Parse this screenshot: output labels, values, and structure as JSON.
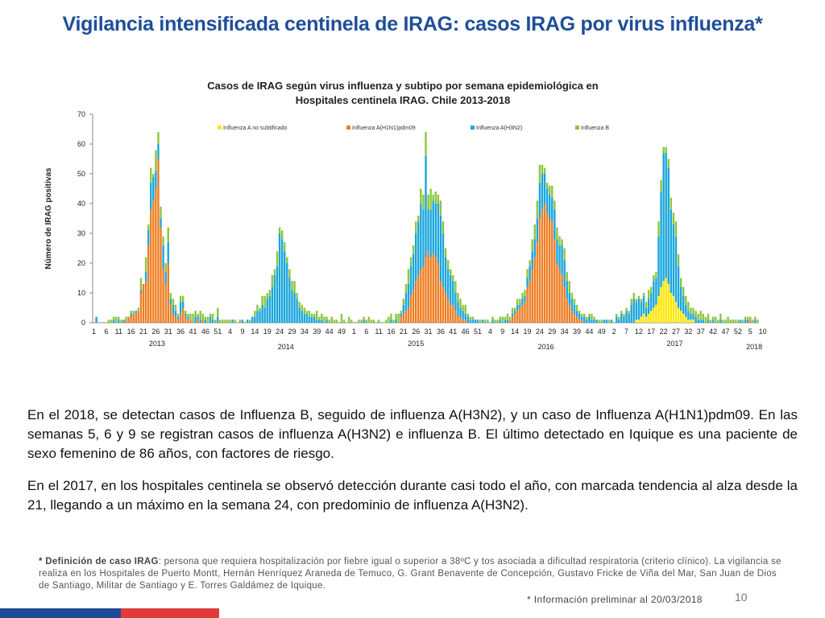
{
  "slide": {
    "title": "Vigilancia intensificada centinela de IRAG:   casos IRAG  por virus influenza*",
    "paragraphs": [
      "En el 2018, se detectan casos de Influenza B, seguido  de influenza A(H3N2), y  un caso de Influenza A(H1N1)pdm09. En las semanas 5, 6 y 9 se registran casos de influenza A(H3N2) e influenza B. El último detectado en Iquique es una paciente  de sexo femenino de 86 años, con factores de riesgo.",
      "En el 2017, en los hospitales centinela se observó detección durante casi todo el año, con marcada tendencia al alza desde la 21, llegando a un máximo en la semana 24, con predominio de influenza A(H3N2)."
    ],
    "footnote_label": "* Definición de caso IRAG",
    "footnote_text": ": persona que requiera hospitalización por fiebre igual o superior a 38ºC y tos asociada a dificultad respiratoria (criterio clínico). La vigilancia se realiza en los Hospitales de Puerto Montt, Hernán Henríquez Araneda de  Temuco, G. Grant Benavente de Concepción, Gustavo Fricke de Viña del Mar, San Juan de Dios de Santiago, Militar de Santiago y E. Torres Galdámez de Iquique.",
    "info_note": "* Información  preliminar  al 20/03/2018",
    "page_number": "10"
  },
  "chart_data": {
    "type": "bar",
    "stacked": true,
    "title_line1": "Casos de IRAG según virus influenza  y subtipo por semana epidemiológica en",
    "title_line2": "Hospitales centinela IRAG. Chile 2013-2018",
    "ylabel": "Número de IRAG positivas",
    "ylim": [
      0,
      70
    ],
    "yticks": [
      0,
      10,
      20,
      30,
      40,
      50,
      60,
      70
    ],
    "xtick_labels": [
      "1",
      "6",
      "11",
      "16",
      "21",
      "26",
      "31",
      "36",
      "41",
      "46",
      "51",
      "4",
      "9",
      "14",
      "19",
      "24",
      "29",
      "34",
      "39",
      "44",
      "49",
      "1",
      "6",
      "11",
      "16",
      "21",
      "26",
      "31",
      "36",
      "41",
      "46",
      "51",
      "4",
      "9",
      "14",
      "19",
      "24",
      "29",
      "34",
      "39",
      "44",
      "49",
      "2",
      "7",
      "12",
      "17",
      "22",
      "27",
      "32",
      "37",
      "42",
      "47",
      "52",
      "5",
      "10"
    ],
    "years": [
      {
        "label": "2013",
        "start": 0,
        "weeks": 52
      },
      {
        "label": "2014",
        "start": 52,
        "weeks": 52
      },
      {
        "label": "2015",
        "start": 104,
        "weeks": 53
      },
      {
        "label": "2016",
        "start": 157,
        "weeks": 52
      },
      {
        "label": "2017",
        "start": 209,
        "weeks": 52
      },
      {
        "label": "2018",
        "start": 261,
        "weeks": 10
      }
    ],
    "colors": {
      "a_no_sub": "#ffe600",
      "h1n1": "#ef7d22",
      "h3n2": "#1aa6dc",
      "b": "#8cc63f"
    },
    "series": [
      {
        "name": "Influenza A no subtificado",
        "key": "a_no_sub"
      },
      {
        "name": "Influenza A(H1N1)pdm09",
        "key": "h1n1"
      },
      {
        "name": "Influenza A(H3N2)",
        "key": "h3n2"
      },
      {
        "name": "Influenza  B",
        "key": "b"
      }
    ],
    "legend_position": "top",
    "grid": false,
    "values_note": "per-week stacked values [a_no_sub, h1n1, h3n2, b] for 271 weeks",
    "weeks": [
      [
        0,
        0,
        0,
        0
      ],
      [
        0,
        0,
        2,
        0
      ],
      [
        0,
        0,
        0,
        0
      ],
      [
        0,
        0,
        0,
        0
      ],
      [
        0,
        0,
        0,
        0
      ],
      [
        0,
        0,
        0,
        0
      ],
      [
        0,
        0,
        0,
        1
      ],
      [
        0,
        0,
        0,
        1
      ],
      [
        0,
        0,
        1,
        1
      ],
      [
        0,
        0,
        0,
        2
      ],
      [
        0,
        0,
        1,
        1
      ],
      [
        0,
        0,
        0,
        1
      ],
      [
        0,
        0,
        1,
        0
      ],
      [
        0,
        1,
        0,
        1
      ],
      [
        0,
        2,
        0,
        0
      ],
      [
        0,
        2,
        1,
        1
      ],
      [
        0,
        3,
        0,
        1
      ],
      [
        0,
        3,
        1,
        0
      ],
      [
        0,
        4,
        0,
        1
      ],
      [
        0,
        10,
        1,
        4
      ],
      [
        0,
        13,
        0,
        0
      ],
      [
        0,
        14,
        3,
        5
      ],
      [
        0,
        26,
        5,
        2
      ],
      [
        0,
        38,
        9,
        5
      ],
      [
        0,
        41,
        8,
        1
      ],
      [
        0,
        45,
        6,
        7
      ],
      [
        0,
        55,
        5,
        4
      ],
      [
        0,
        32,
        3,
        4
      ],
      [
        0,
        18,
        8,
        3
      ],
      [
        0,
        13,
        4,
        3
      ],
      [
        0,
        20,
        7,
        5
      ],
      [
        0,
        6,
        2,
        2
      ],
      [
        0,
        3,
        3,
        2
      ],
      [
        0,
        2,
        2,
        2
      ],
      [
        0,
        1,
        1,
        1
      ],
      [
        0,
        3,
        4,
        2
      ],
      [
        0,
        5,
        2,
        2
      ],
      [
        0,
        2,
        1,
        1
      ],
      [
        0,
        1,
        1,
        1
      ],
      [
        0,
        1,
        0,
        2
      ],
      [
        0,
        0,
        0,
        3
      ],
      [
        0,
        0,
        2,
        2
      ],
      [
        0,
        1,
        1,
        1
      ],
      [
        0,
        0,
        1,
        3
      ],
      [
        0,
        1,
        0,
        2
      ],
      [
        0,
        0,
        1,
        1
      ],
      [
        0,
        0,
        0,
        2
      ],
      [
        0,
        0,
        2,
        1
      ],
      [
        0,
        0,
        1,
        2
      ],
      [
        0,
        0,
        0,
        1
      ],
      [
        0,
        0,
        2,
        3
      ],
      [
        0,
        0,
        0,
        1
      ],
      [
        0,
        0,
        0,
        1
      ],
      [
        0,
        0,
        0,
        1
      ],
      [
        0,
        0,
        0,
        1
      ],
      [
        0,
        0,
        0,
        1
      ],
      [
        0,
        0,
        1,
        0
      ],
      [
        0,
        0,
        0,
        1
      ],
      [
        0,
        0,
        0,
        0
      ],
      [
        0,
        0,
        0,
        1
      ],
      [
        0,
        0,
        1,
        0
      ],
      [
        0,
        0,
        0,
        0
      ],
      [
        0,
        0,
        1,
        0
      ],
      [
        0,
        0,
        0,
        1
      ],
      [
        0,
        0,
        2,
        0
      ],
      [
        0,
        0,
        2,
        2
      ],
      [
        0,
        0,
        4,
        2
      ],
      [
        0,
        0,
        4,
        1
      ],
      [
        0,
        0,
        6,
        3
      ],
      [
        0,
        0,
        5,
        4
      ],
      [
        0,
        0,
        8,
        2
      ],
      [
        0,
        0,
        9,
        2
      ],
      [
        0,
        0,
        12,
        4
      ],
      [
        0,
        0,
        16,
        2
      ],
      [
        0,
        0,
        19,
        5
      ],
      [
        0,
        0,
        30,
        2
      ],
      [
        0,
        0,
        28,
        3
      ],
      [
        0,
        0,
        24,
        3
      ],
      [
        0,
        0,
        20,
        2
      ],
      [
        0,
        0,
        15,
        3
      ],
      [
        0,
        0,
        11,
        3
      ],
      [
        0,
        0,
        10,
        4
      ],
      [
        0,
        0,
        8,
        2
      ],
      [
        0,
        0,
        5,
        2
      ],
      [
        0,
        0,
        4,
        2
      ],
      [
        0,
        0,
        3,
        2
      ],
      [
        0,
        0,
        3,
        1
      ],
      [
        0,
        0,
        2,
        2
      ],
      [
        0,
        0,
        2,
        1
      ],
      [
        0,
        0,
        2,
        1
      ],
      [
        0,
        0,
        1,
        3
      ],
      [
        0,
        0,
        1,
        1
      ],
      [
        0,
        0,
        1,
        2
      ],
      [
        0,
        0,
        0,
        2
      ],
      [
        0,
        0,
        1,
        1
      ],
      [
        0,
        0,
        0,
        1
      ],
      [
        0,
        0,
        0,
        2
      ],
      [
        0,
        0,
        0,
        1
      ],
      [
        0,
        0,
        0,
        1
      ],
      [
        0,
        0,
        0,
        0
      ],
      [
        0,
        0,
        0,
        3
      ],
      [
        0,
        0,
        0,
        1
      ],
      [
        0,
        0,
        0,
        0
      ],
      [
        0,
        0,
        0,
        2
      ],
      [
        0,
        0,
        0,
        1
      ],
      [
        0,
        0,
        0,
        0
      ],
      [
        0,
        0,
        0,
        0
      ],
      [
        0,
        0,
        0,
        1
      ],
      [
        0,
        0,
        0,
        1
      ],
      [
        0,
        0,
        1,
        1
      ],
      [
        0,
        0,
        0,
        1
      ],
      [
        0,
        0,
        0,
        2
      ],
      [
        0,
        0,
        0,
        1
      ],
      [
        0,
        0,
        0,
        1
      ],
      [
        0,
        0,
        0,
        0
      ],
      [
        0,
        0,
        0,
        1
      ],
      [
        0,
        0,
        0,
        0
      ],
      [
        0,
        0,
        0,
        0
      ],
      [
        0,
        0,
        0,
        1
      ],
      [
        0,
        0,
        0,
        2
      ],
      [
        0,
        0,
        1,
        2
      ],
      [
        0,
        0,
        0,
        1
      ],
      [
        0,
        0,
        1,
        2
      ],
      [
        0,
        0,
        0,
        3
      ],
      [
        0,
        2,
        1,
        1
      ],
      [
        0,
        3,
        3,
        2
      ],
      [
        0,
        4,
        6,
        3
      ],
      [
        0,
        5,
        8,
        5
      ],
      [
        0,
        9,
        10,
        3
      ],
      [
        0,
        11,
        12,
        3
      ],
      [
        0,
        14,
        16,
        4
      ],
      [
        0,
        16,
        18,
        2
      ],
      [
        0,
        18,
        22,
        5
      ],
      [
        0,
        19,
        19,
        5
      ],
      [
        0,
        22,
        34,
        8
      ],
      [
        0,
        24,
        14,
        5
      ],
      [
        0,
        22,
        16,
        7
      ],
      [
        0,
        23,
        18,
        2
      ],
      [
        0,
        22,
        18,
        4
      ],
      [
        0,
        20,
        20,
        3
      ],
      [
        0,
        14,
        22,
        5
      ],
      [
        0,
        12,
        18,
        4
      ],
      [
        0,
        10,
        12,
        3
      ],
      [
        0,
        8,
        10,
        3
      ],
      [
        0,
        6,
        10,
        2
      ],
      [
        0,
        6,
        8,
        2
      ],
      [
        0,
        4,
        6,
        4
      ],
      [
        0,
        2,
        5,
        3
      ],
      [
        0,
        2,
        3,
        3
      ],
      [
        0,
        1,
        3,
        2
      ],
      [
        0,
        1,
        2,
        3
      ],
      [
        0,
        0,
        2,
        1
      ],
      [
        0,
        0,
        1,
        1
      ],
      [
        0,
        0,
        1,
        1
      ],
      [
        0,
        0,
        1,
        0
      ],
      [
        0,
        0,
        1,
        0
      ],
      [
        0,
        0,
        0,
        1
      ],
      [
        0,
        0,
        1,
        0
      ],
      [
        0,
        0,
        0,
        1
      ],
      [
        0,
        0,
        0,
        1
      ],
      [
        0,
        0,
        0,
        0
      ],
      [
        0,
        0,
        1,
        1
      ],
      [
        0,
        0,
        0,
        1
      ],
      [
        0,
        0,
        0,
        1
      ],
      [
        0,
        0,
        1,
        1
      ],
      [
        0,
        0,
        0,
        2
      ],
      [
        0,
        0,
        1,
        1
      ],
      [
        0,
        0,
        1,
        2
      ],
      [
        0,
        1,
        0,
        1
      ],
      [
        0,
        2,
        1,
        2
      ],
      [
        0,
        3,
        1,
        1
      ],
      [
        0,
        4,
        2,
        2
      ],
      [
        0,
        5,
        1,
        2
      ],
      [
        0,
        6,
        2,
        2
      ],
      [
        0,
        7,
        2,
        2
      ],
      [
        0,
        12,
        3,
        3
      ],
      [
        0,
        14,
        5,
        2
      ],
      [
        0,
        18,
        6,
        4
      ],
      [
        0,
        22,
        6,
        5
      ],
      [
        0,
        27,
        8,
        6
      ],
      [
        0,
        35,
        12,
        6
      ],
      [
        0,
        38,
        12,
        3
      ],
      [
        0,
        40,
        10,
        2
      ],
      [
        0,
        37,
        8,
        2
      ],
      [
        0,
        35,
        8,
        3
      ],
      [
        0,
        34,
        8,
        4
      ],
      [
        0,
        28,
        10,
        3
      ],
      [
        0,
        20,
        8,
        4
      ],
      [
        0,
        18,
        8,
        3
      ],
      [
        0,
        16,
        10,
        2
      ],
      [
        0,
        12,
        9,
        4
      ],
      [
        0,
        8,
        6,
        3
      ],
      [
        0,
        6,
        4,
        4
      ],
      [
        0,
        4,
        4,
        2
      ],
      [
        0,
        3,
        3,
        2
      ],
      [
        0,
        2,
        2,
        2
      ],
      [
        0,
        1,
        2,
        1
      ],
      [
        0,
        1,
        1,
        1
      ],
      [
        0,
        0,
        2,
        1
      ],
      [
        0,
        0,
        1,
        1
      ],
      [
        0,
        0,
        2,
        1
      ],
      [
        0,
        0,
        1,
        2
      ],
      [
        0,
        0,
        1,
        1
      ],
      [
        0,
        0,
        1,
        0
      ],
      [
        0,
        0,
        0,
        1
      ],
      [
        0,
        0,
        0,
        1
      ],
      [
        0,
        0,
        1,
        0
      ],
      [
        0,
        0,
        1,
        0
      ],
      [
        0,
        0,
        0,
        1
      ],
      [
        0,
        0,
        1,
        0
      ],
      [
        0,
        0,
        0,
        0
      ],
      [
        0,
        0,
        2,
        1
      ],
      [
        0,
        0,
        1,
        1
      ],
      [
        0,
        0,
        3,
        1
      ],
      [
        0,
        0,
        2,
        1
      ],
      [
        0,
        0,
        4,
        1
      ],
      [
        0,
        0,
        3,
        1
      ],
      [
        0,
        0,
        6,
        2
      ],
      [
        0,
        0,
        8,
        2
      ],
      [
        1,
        0,
        6,
        1
      ],
      [
        1,
        0,
        7,
        1
      ],
      [
        2,
        0,
        5,
        1
      ],
      [
        3,
        0,
        6,
        1
      ],
      [
        2,
        0,
        3,
        2
      ],
      [
        3,
        0,
        5,
        3
      ],
      [
        4,
        0,
        6,
        2
      ],
      [
        5,
        0,
        9,
        2
      ],
      [
        6,
        0,
        9,
        2
      ],
      [
        9,
        0,
        20,
        5
      ],
      [
        12,
        0,
        32,
        4
      ],
      [
        14,
        0,
        43,
        2
      ],
      [
        15,
        0,
        42,
        2
      ],
      [
        13,
        0,
        39,
        3
      ],
      [
        10,
        0,
        28,
        4
      ],
      [
        9,
        0,
        24,
        4
      ],
      [
        7,
        0,
        22,
        5
      ],
      [
        5,
        0,
        14,
        4
      ],
      [
        4,
        0,
        8,
        3
      ],
      [
        3,
        0,
        6,
        3
      ],
      [
        2,
        0,
        4,
        3
      ],
      [
        1,
        0,
        3,
        3
      ],
      [
        1,
        0,
        2,
        2
      ],
      [
        1,
        0,
        2,
        2
      ],
      [
        0,
        0,
        2,
        2
      ],
      [
        0,
        0,
        1,
        2
      ],
      [
        0,
        0,
        1,
        3
      ],
      [
        0,
        0,
        1,
        2
      ],
      [
        0,
        0,
        0,
        2
      ],
      [
        0,
        0,
        1,
        2
      ],
      [
        0,
        0,
        0,
        1
      ],
      [
        0,
        0,
        1,
        1
      ],
      [
        0,
        0,
        0,
        2
      ],
      [
        0,
        0,
        0,
        1
      ],
      [
        0,
        0,
        1,
        2
      ],
      [
        0,
        0,
        0,
        1
      ],
      [
        0,
        0,
        0,
        1
      ],
      [
        0,
        0,
        0,
        2
      ],
      [
        0,
        0,
        0,
        1
      ],
      [
        0,
        0,
        0,
        1
      ],
      [
        0,
        0,
        0,
        1
      ],
      [
        0,
        0,
        0,
        1
      ],
      [
        0,
        0,
        1,
        0
      ],
      [
        0,
        0,
        0,
        1
      ],
      [
        0,
        0,
        1,
        1
      ],
      [
        0,
        0,
        1,
        1
      ],
      [
        0,
        1,
        0,
        1
      ],
      [
        0,
        0,
        0,
        1
      ],
      [
        0,
        0,
        1,
        1
      ],
      [
        0,
        0,
        0,
        1
      ]
    ]
  }
}
